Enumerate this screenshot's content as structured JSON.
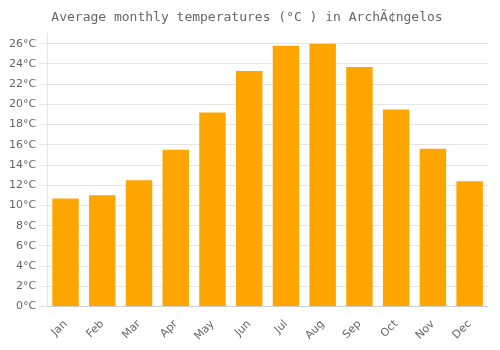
{
  "chart_data": {
    "type": "bar",
    "title": "Average monthly temperatures (°C ) in ArchÃ¢ngelos",
    "categories": [
      "Jan",
      "Feb",
      "Mar",
      "Apr",
      "May",
      "Jun",
      "Jul",
      "Aug",
      "Sep",
      "Oct",
      "Nov",
      "Dec"
    ],
    "values": [
      10.7,
      11.0,
      12.5,
      15.5,
      19.2,
      23.3,
      25.8,
      26.0,
      23.7,
      19.5,
      15.6,
      12.4
    ],
    "color": "#FFA500",
    "ylim": [
      0,
      27
    ],
    "yticks": [
      {
        "value": 0,
        "label": "0°C"
      },
      {
        "value": 2,
        "label": "2°C"
      },
      {
        "value": 4,
        "label": "4°C"
      },
      {
        "value": 6,
        "label": "6°C"
      },
      {
        "value": 8,
        "label": "8°C"
      },
      {
        "value": 10,
        "label": "10°C"
      },
      {
        "value": 12,
        "label": "12°C"
      },
      {
        "value": 14,
        "label": "14°C"
      },
      {
        "value": 16,
        "label": "16°C"
      },
      {
        "value": 18,
        "label": "18°C"
      },
      {
        "value": 20,
        "label": "20°C"
      },
      {
        "value": 22,
        "label": "22°C"
      },
      {
        "value": 24,
        "label": "24°C"
      },
      {
        "value": 26,
        "label": "26°C"
      }
    ],
    "grid": true
  }
}
